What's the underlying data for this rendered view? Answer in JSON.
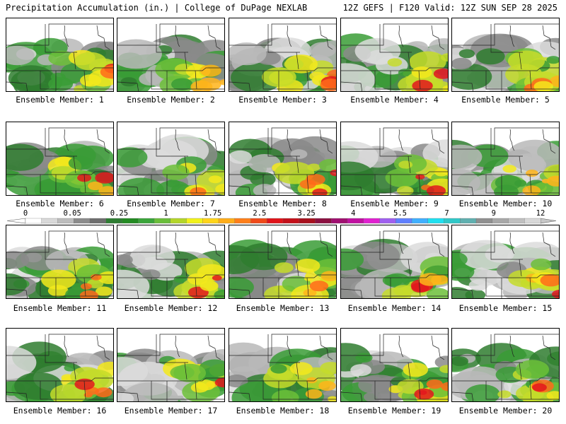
{
  "header": {
    "left": "Precipitation Accumulation (in.) | College of DuPage NEXLAB",
    "right": "12Z GEFS | F120 Valid: 12Z SUN SEP 28 2025"
  },
  "panels": [
    {
      "caption": "Ensemble Member: 1"
    },
    {
      "caption": "Ensemble Member: 2"
    },
    {
      "caption": "Ensemble Member: 3"
    },
    {
      "caption": "Ensemble Member: 4"
    },
    {
      "caption": "Ensemble Member: 5"
    },
    {
      "caption": "Ensemble Member: 6"
    },
    {
      "caption": "Ensemble Member: 7"
    },
    {
      "caption": "Ensemble Member: 8"
    },
    {
      "caption": "Ensemble Member: 9"
    },
    {
      "caption": "Ensemble Member: 10"
    },
    {
      "caption": "Ensemble Member: 11"
    },
    {
      "caption": "Ensemble Member: 12"
    },
    {
      "caption": "Ensemble Member: 13"
    },
    {
      "caption": "Ensemble Member: 14"
    },
    {
      "caption": "Ensemble Member: 15"
    },
    {
      "caption": "Ensemble Member: 16"
    },
    {
      "caption": "Ensemble Member: 17"
    },
    {
      "caption": "Ensemble Member: 18"
    },
    {
      "caption": "Ensemble Member: 19"
    },
    {
      "caption": "Ensemble Member: 20"
    }
  ],
  "colorbar": {
    "labels": [
      "0",
      "0.05",
      "0.25",
      "1",
      "1.75",
      "2.5",
      "3.25",
      "4",
      "5.5",
      "7",
      "9",
      "12"
    ],
    "colors": [
      "#ffffff",
      "#d9d9d9",
      "#bdbdbd",
      "#8c8c8c",
      "#6e6e6e",
      "#2e7d32",
      "#238b22",
      "#3aa53a",
      "#6abe3a",
      "#b4d629",
      "#f2f21a",
      "#ffd51a",
      "#ffad1a",
      "#ff7f1a",
      "#f04a1a",
      "#e0141a",
      "#c4101a",
      "#a8101e",
      "#8c1040",
      "#a01070",
      "#c010a0",
      "#e020d0",
      "#a060f0",
      "#6080ff",
      "#40b0ff",
      "#20e0f0",
      "#30c8c8",
      "#60b0b0",
      "#909090",
      "#a8a8a8",
      "#c0c0c0",
      "#d8d8d8"
    ]
  }
}
